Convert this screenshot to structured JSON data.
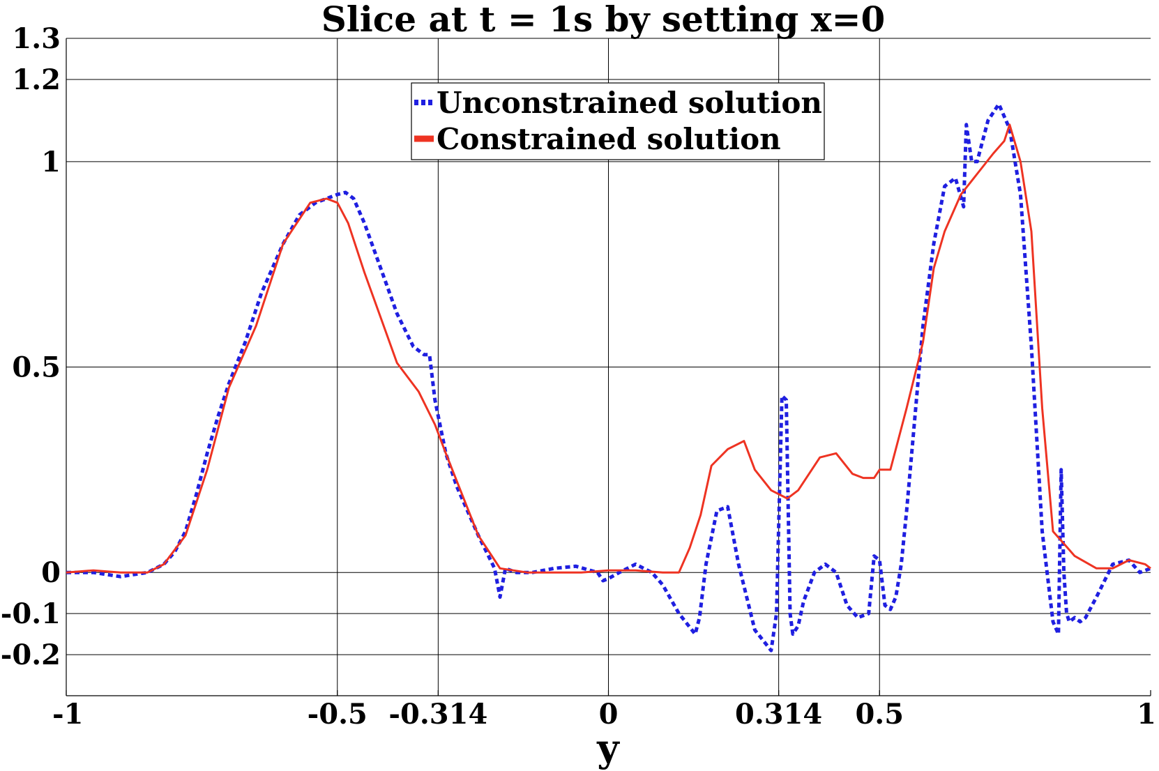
{
  "chart_data": {
    "type": "line",
    "title": "Slice at t = 1s by setting x=0",
    "xlabel": "y",
    "ylabel": "",
    "xlim": [
      -1,
      1
    ],
    "ylim": [
      -0.3,
      1.3
    ],
    "grid": true,
    "legend_position": "top-center",
    "x_ticks": [
      {
        "value": -1,
        "label": "-1"
      },
      {
        "value": -0.5,
        "label": "-0.5"
      },
      {
        "value": -0.314,
        "label": "-0.314"
      },
      {
        "value": 0,
        "label": "0"
      },
      {
        "value": 0.314,
        "label": "0.314"
      },
      {
        "value": 0.5,
        "label": "0.5"
      },
      {
        "value": 1,
        "label": "1"
      }
    ],
    "y_ticks": [
      {
        "value": -0.2,
        "label": "-0.2"
      },
      {
        "value": -0.1,
        "label": "-0.1"
      },
      {
        "value": 0,
        "label": "0"
      },
      {
        "value": 0.5,
        "label": "0.5"
      },
      {
        "value": 1,
        "label": "1"
      },
      {
        "value": 1.2,
        "label": "1.2"
      },
      {
        "value": 1.3,
        "label": "1.3"
      }
    ],
    "series": [
      {
        "name": "Unconstrained solution",
        "color": "#1f1fe0",
        "style": "dotted",
        "x": [
          -1,
          -0.95,
          -0.9,
          -0.85,
          -0.82,
          -0.8,
          -0.78,
          -0.76,
          -0.74,
          -0.72,
          -0.7,
          -0.67,
          -0.64,
          -0.6,
          -0.57,
          -0.54,
          -0.52,
          -0.5,
          -0.485,
          -0.47,
          -0.45,
          -0.42,
          -0.39,
          -0.36,
          -0.34,
          -0.33,
          -0.32,
          -0.3,
          -0.28,
          -0.26,
          -0.24,
          -0.225,
          -0.21,
          -0.2,
          -0.19,
          -0.17,
          -0.14,
          -0.1,
          -0.06,
          -0.02,
          -0.01,
          0,
          0.02,
          0.05,
          0.08,
          0.1,
          0.13,
          0.16,
          0.168,
          0.18,
          0.2,
          0.22,
          0.24,
          0.27,
          0.3,
          0.31,
          0.32,
          0.328,
          0.335,
          0.34,
          0.35,
          0.36,
          0.38,
          0.4,
          0.42,
          0.44,
          0.46,
          0.48,
          0.49,
          0.5,
          0.51,
          0.52,
          0.53,
          0.54,
          0.55,
          0.56,
          0.57,
          0.58,
          0.6,
          0.62,
          0.64,
          0.655,
          0.66,
          0.67,
          0.68,
          0.7,
          0.72,
          0.74,
          0.76,
          0.78,
          0.8,
          0.82,
          0.83,
          0.835,
          0.84,
          0.845,
          0.85,
          0.86,
          0.87,
          0.88,
          0.9,
          0.93,
          0.96,
          0.98,
          1
        ],
        "y": [
          0.0,
          0.0,
          -0.01,
          0.0,
          0.02,
          0.05,
          0.1,
          0.19,
          0.29,
          0.38,
          0.46,
          0.56,
          0.68,
          0.8,
          0.87,
          0.9,
          0.91,
          0.92,
          0.925,
          0.91,
          0.85,
          0.74,
          0.63,
          0.55,
          0.53,
          0.53,
          0.42,
          0.29,
          0.21,
          0.15,
          0.09,
          0.05,
          0.01,
          -0.06,
          0.01,
          0.0,
          0.0,
          0.01,
          0.015,
          0.0,
          -0.02,
          -0.015,
          0.0,
          0.02,
          0.0,
          -0.03,
          -0.1,
          -0.15,
          -0.11,
          0.02,
          0.15,
          0.16,
          0.02,
          -0.14,
          -0.19,
          -0.1,
          0.43,
          0.42,
          -0.1,
          -0.15,
          -0.13,
          -0.07,
          0.0,
          0.02,
          0.0,
          -0.08,
          -0.11,
          -0.1,
          0.04,
          0.03,
          -0.08,
          -0.09,
          -0.06,
          0.02,
          0.15,
          0.3,
          0.45,
          0.6,
          0.8,
          0.94,
          0.96,
          0.89,
          1.09,
          1.0,
          1.0,
          1.1,
          1.14,
          1.08,
          0.92,
          0.55,
          0.1,
          -0.12,
          -0.15,
          0.25,
          0.0,
          -0.1,
          -0.12,
          -0.11,
          -0.12,
          -0.11,
          -0.06,
          0.02,
          0.03,
          0.0,
          0.01
        ]
      },
      {
        "name": "Constrained solution",
        "color": "#ee3322",
        "style": "solid",
        "x": [
          -1,
          -0.95,
          -0.9,
          -0.85,
          -0.82,
          -0.78,
          -0.74,
          -0.7,
          -0.65,
          -0.6,
          -0.55,
          -0.52,
          -0.5,
          -0.48,
          -0.45,
          -0.42,
          -0.39,
          -0.35,
          -0.32,
          -0.3,
          -0.27,
          -0.24,
          -0.22,
          -0.2,
          -0.15,
          -0.1,
          -0.05,
          0,
          0.05,
          0.1,
          0.13,
          0.15,
          0.17,
          0.19,
          0.22,
          0.25,
          0.27,
          0.3,
          0.33,
          0.35,
          0.39,
          0.42,
          0.45,
          0.47,
          0.49,
          0.5,
          0.52,
          0.55,
          0.58,
          0.6,
          0.62,
          0.65,
          0.68,
          0.71,
          0.73,
          0.74,
          0.76,
          0.78,
          0.8,
          0.82,
          0.84,
          0.86,
          0.9,
          0.93,
          0.96,
          0.99,
          1
        ],
        "y": [
          0.0,
          0.005,
          0.0,
          0.0,
          0.02,
          0.09,
          0.25,
          0.45,
          0.6,
          0.8,
          0.9,
          0.91,
          0.9,
          0.85,
          0.73,
          0.62,
          0.51,
          0.44,
          0.36,
          0.29,
          0.19,
          0.09,
          0.05,
          0.01,
          0.0,
          0.0,
          0.0,
          0.005,
          0.005,
          0.0,
          0.0,
          0.06,
          0.14,
          0.26,
          0.3,
          0.32,
          0.25,
          0.2,
          0.18,
          0.2,
          0.28,
          0.29,
          0.24,
          0.23,
          0.23,
          0.25,
          0.25,
          0.4,
          0.56,
          0.74,
          0.83,
          0.92,
          0.97,
          1.02,
          1.05,
          1.09,
          1.0,
          0.83,
          0.4,
          0.1,
          0.07,
          0.04,
          0.01,
          0.01,
          0.03,
          0.02,
          0.01
        ]
      }
    ]
  }
}
